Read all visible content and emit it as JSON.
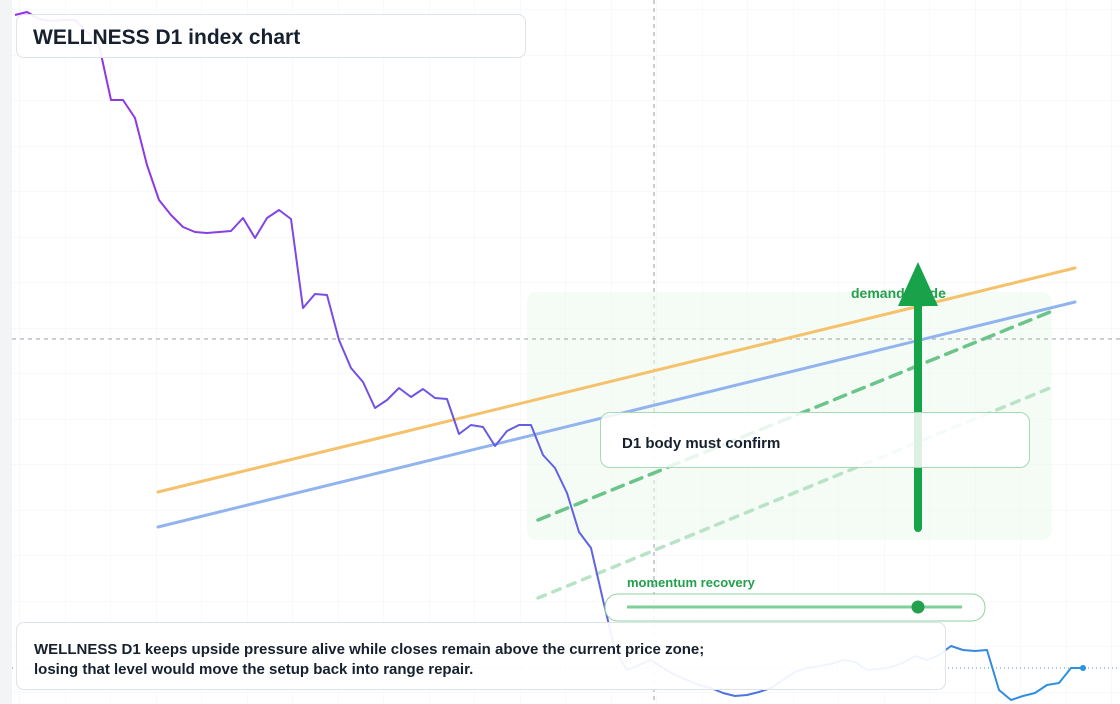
{
  "chart_data": {
    "type": "line",
    "title": "WELLNESS D1 index chart",
    "series": [
      {
        "name": "WELLNESS D1",
        "colors": [
          "#9b2de6",
          "#2a93e0"
        ],
        "values": [
          689,
          692,
          685,
          683,
          684,
          684,
          672,
          659,
          604,
          604,
          586,
          539,
          504,
          489,
          477,
          472,
          471,
          472,
          473,
          486,
          466,
          486,
          494,
          485,
          396,
          410,
          409,
          364,
          336,
          322,
          296,
          304,
          316,
          307,
          315,
          306,
          305,
          270,
          279,
          277,
          258,
          273,
          279,
          279,
          249,
          236,
          211,
          172,
          156,
          104,
          54,
          34,
          39,
          44,
          36,
          29,
          24,
          19,
          16,
          11,
          8,
          9,
          12,
          16,
          24,
          32,
          36,
          38,
          40,
          44,
          42,
          34,
          35,
          37,
          41,
          48,
          44,
          49,
          58,
          54,
          53,
          54,
          14,
          4,
          8,
          11,
          19,
          21,
          36,
          36
        ]
      }
    ],
    "ylim": [
      0,
      704
    ],
    "trend_lines": [
      {
        "color": "#f5c26b",
        "values": [
          212,
          436
        ],
        "dash": false
      },
      {
        "color": "#92b4ee",
        "values": [
          177,
          402
        ],
        "dash": false
      },
      {
        "color": "#6cc48a",
        "values": [
          184,
          392
        ],
        "dash": true
      },
      {
        "color": "#b9e3c6",
        "values": [
          106,
          316
        ],
        "dash": true
      }
    ],
    "crosshair_level": 365,
    "last_level": 36,
    "zone_label": "demand guide",
    "confirm_label": "D1 body must confirm",
    "momentum_label": "momentum recovery",
    "note": [
      "WELLNESS D1 keeps upside pressure alive while closes remain above the current price zone;",
      "losing that level would move the setup back into range repair."
    ]
  }
}
